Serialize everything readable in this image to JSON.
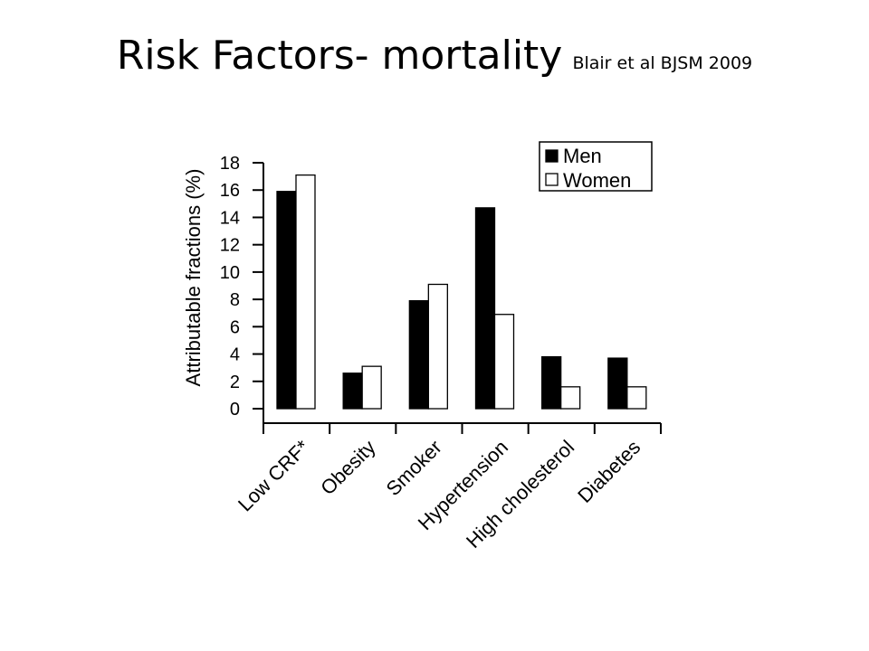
{
  "slide": {
    "title": "Risk Factors- mortality",
    "citation": "Blair et al BJSM 2009"
  },
  "colors": {
    "men": "#000000",
    "women": "#ffffff",
    "axis": "#000000"
  },
  "chart_data": {
    "type": "bar",
    "title": "",
    "xlabel": "",
    "ylabel": "Attributable fractions (%)",
    "categories": [
      "Low CRF*",
      "Obesity",
      "Smoker",
      "Hypertension",
      "High cholesterol",
      "Diabetes"
    ],
    "series": [
      {
        "name": "Men",
        "values": [
          15.9,
          2.6,
          7.9,
          14.7,
          3.8,
          3.7
        ]
      },
      {
        "name": "Women",
        "values": [
          17.1,
          3.1,
          9.1,
          6.9,
          1.6,
          1.6
        ]
      }
    ],
    "ylim": [
      0,
      18
    ],
    "yticks": [
      "0",
      "2",
      "4",
      "6",
      "8",
      "10",
      "12",
      "14",
      "16",
      "18"
    ],
    "grid": false,
    "legend": "top-right"
  }
}
